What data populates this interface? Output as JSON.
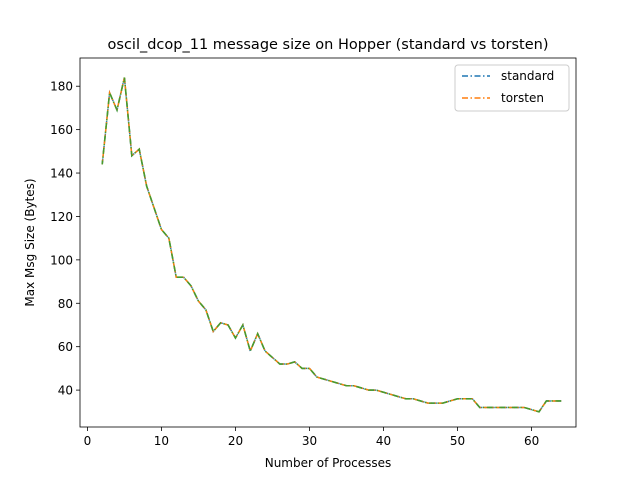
{
  "chart_data": {
    "type": "line",
    "title": "oscil_dcop_11 message size on Hopper (standard vs torsten)",
    "xlabel": "Number of Processes",
    "ylabel": "Max Msg Size (Bytes)",
    "xlim": [
      -1,
      66
    ],
    "ylim": [
      23,
      193
    ],
    "xticks": [
      0,
      10,
      20,
      30,
      40,
      50,
      60
    ],
    "yticks": [
      40,
      60,
      80,
      100,
      120,
      140,
      160,
      180
    ],
    "legend_position": "top-right",
    "grid": false,
    "x": [
      2,
      3,
      4,
      5,
      6,
      7,
      8,
      9,
      10,
      11,
      12,
      13,
      14,
      15,
      16,
      17,
      18,
      19,
      20,
      21,
      22,
      23,
      24,
      25,
      26,
      27,
      28,
      29,
      30,
      31,
      32,
      33,
      34,
      35,
      36,
      37,
      38,
      39,
      40,
      41,
      42,
      43,
      44,
      45,
      46,
      47,
      48,
      49,
      50,
      51,
      52,
      53,
      54,
      55,
      56,
      57,
      58,
      59,
      60,
      61,
      62,
      63,
      64
    ],
    "series": [
      {
        "name": "standard",
        "color": "#1f77b4",
        "values": [
          144,
          177,
          169,
          184,
          148,
          151,
          134,
          124,
          114,
          110,
          92,
          92,
          88,
          81,
          77,
          67,
          71,
          70,
          64,
          70,
          58,
          66,
          58,
          55,
          52,
          52,
          53,
          50,
          50,
          46,
          45,
          44,
          43,
          42,
          42,
          41,
          40,
          40,
          39,
          38,
          37,
          36,
          36,
          35,
          34,
          34,
          34,
          35,
          36,
          36,
          36,
          32,
          32,
          32,
          32,
          32,
          32,
          32,
          31,
          30,
          35,
          35,
          35
        ]
      },
      {
        "name": "torsten",
        "color": "#ff7f0e",
        "values": [
          144,
          177,
          169,
          184,
          148,
          151,
          134,
          124,
          114,
          110,
          92,
          92,
          88,
          81,
          77,
          67,
          71,
          70,
          64,
          70,
          58,
          66,
          58,
          55,
          52,
          52,
          53,
          50,
          50,
          46,
          45,
          44,
          43,
          42,
          42,
          41,
          40,
          40,
          39,
          38,
          37,
          36,
          36,
          35,
          34,
          34,
          34,
          35,
          36,
          36,
          36,
          32,
          32,
          32,
          32,
          32,
          32,
          32,
          31,
          30,
          35,
          35,
          35
        ]
      }
    ],
    "overlap_color": "#4a9a2c"
  }
}
